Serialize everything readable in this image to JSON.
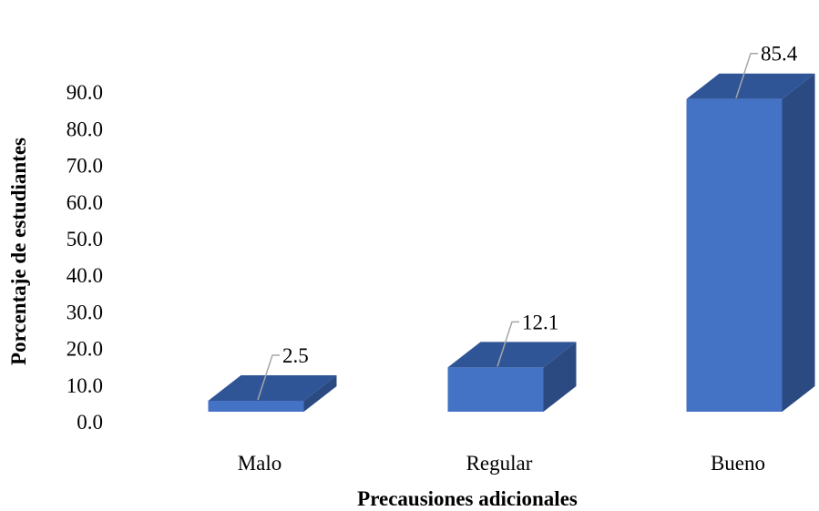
{
  "chart_data": {
    "type": "bar",
    "style": "3d-column",
    "categories": [
      "Malo",
      "Regular",
      "Bueno"
    ],
    "values": [
      2.5,
      12.1,
      85.4
    ],
    "data_labels": [
      "2.5",
      "12.1",
      "85.4"
    ],
    "title": "",
    "xlabel": "Precausiones adicionales",
    "ylabel": "Porcentaje de estudiantes",
    "ylim": [
      0,
      90
    ],
    "yticks": [
      "0.0",
      "10.0",
      "20.0",
      "30.0",
      "40.0",
      "50.0",
      "60.0",
      "70.0",
      "80.0",
      "90.0"
    ],
    "grid": false,
    "legend": "none",
    "colors": {
      "front": "#4472C4",
      "top": "#2F5597",
      "side": "#2B4A82",
      "leader": "#A6A6A6"
    }
  }
}
